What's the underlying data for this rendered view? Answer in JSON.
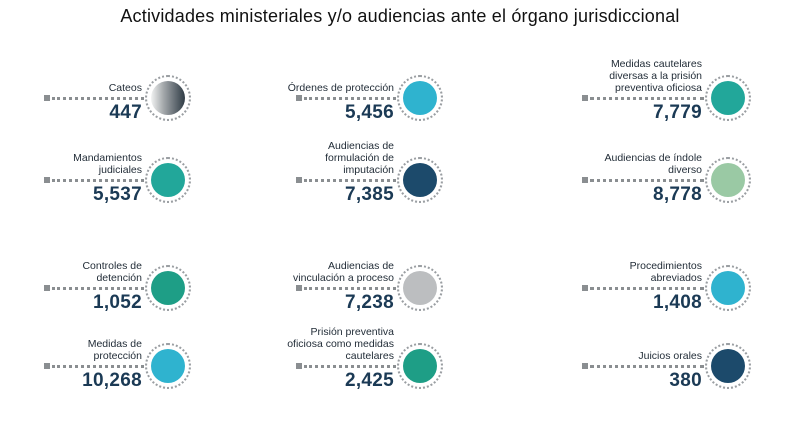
{
  "chart_data": {
    "type": "table",
    "title": "Actividades ministeriales y/o audiencias ante el órgano jurisdiccional",
    "items": [
      {
        "label": "Cateos",
        "value": "447",
        "color": "gradient-dark"
      },
      {
        "label": "Órdenes de protección",
        "value": "5,456",
        "color": "#2fb3cf"
      },
      {
        "label": "Medidas cautelares diversas a la prisión preventiva oficiosa",
        "value": "7,779",
        "color": "#22a79a"
      },
      {
        "label": "Mandamientos judiciales",
        "value": "5,537",
        "color": "#22a79a"
      },
      {
        "label": "Audiencias de formulación de imputación",
        "value": "7,385",
        "color": "#1c4a6b"
      },
      {
        "label": "Audiencias de índole diverso",
        "value": "8,778",
        "color": "#9ac9a4"
      },
      {
        "label": "Controles de detención",
        "value": "1,052",
        "color": "#1e9e86"
      },
      {
        "label": "Audiencias de vinculación a proceso",
        "value": "7,238",
        "color": "#bcbec0"
      },
      {
        "label": "Procedimientos abreviados",
        "value": "1,408",
        "color": "#2fb3cf"
      },
      {
        "label": "Medidas de protección",
        "value": "10,268",
        "color": "#2fb3cf"
      },
      {
        "label": "Prisión preventiva oficiosa como medidas cautelares",
        "value": "2,425",
        "color": "#1e9e86"
      },
      {
        "label": "Juicios orales",
        "value": "380",
        "color": "#1c4a6b"
      }
    ]
  }
}
